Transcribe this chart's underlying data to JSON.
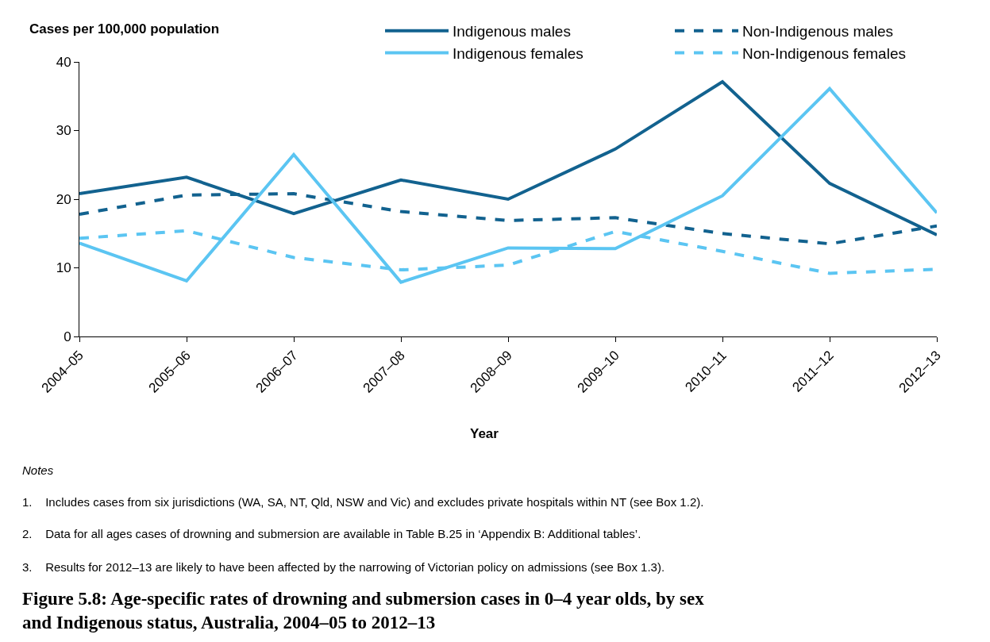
{
  "chart_data": {
    "type": "line",
    "ylabel": "Cases per 100,000 population",
    "xlabel": "Year",
    "title": "Figure 5.8: Age-specific rates of drowning and submersion cases in 0–4 year olds, by sex and Indigenous status, Australia, 2004–05 to 2012–13",
    "categories": [
      "2004–05",
      "2005–06",
      "2006–07",
      "2007–08",
      "2008–09",
      "2009–10",
      "2010–11",
      "2011–12",
      "2012–13"
    ],
    "series": [
      {
        "name": "Indigenous males",
        "color": "#12628f",
        "line_style": "solid",
        "values": [
          20.8,
          23.2,
          17.9,
          22.8,
          20.0,
          27.3,
          37.1,
          22.3,
          14.8
        ]
      },
      {
        "name": "Non-Indigenous males",
        "color": "#12628f",
        "line_style": "dashed",
        "values": [
          17.8,
          20.6,
          20.8,
          18.2,
          16.9,
          17.3,
          15.0,
          13.5,
          16.1
        ]
      },
      {
        "name": "Indigenous females",
        "color": "#5bc5f2",
        "line_style": "solid",
        "values": [
          13.6,
          8.1,
          26.5,
          7.9,
          12.9,
          12.8,
          20.5,
          36.1,
          18.0
        ]
      },
      {
        "name": "Non-Indigenous females",
        "color": "#5bc5f2",
        "line_style": "dashed",
        "values": [
          14.3,
          15.4,
          11.5,
          9.7,
          10.4,
          15.3,
          12.4,
          9.2,
          9.8
        ]
      }
    ],
    "ylim": [
      0,
      40
    ],
    "yticks": [
      0,
      10,
      20,
      30,
      40
    ],
    "grid": false,
    "legend": "top",
    "marker": "none",
    "annotations": [
      "Notes",
      "1.    Includes cases from six jurisdictions (WA, SA, NT, Qld, NSW and Vic) and excludes private hospitals within NT (see Box 1.2).",
      "2.    Data for all ages cases of drowning and submersion are available in Table B.25 in ‘Appendix B: Additional tables’.",
      "3.    Results for 2012–13 are likely to have been affected by the narrowing of Victorian policy on admissions (see Box 1.3)."
    ]
  }
}
